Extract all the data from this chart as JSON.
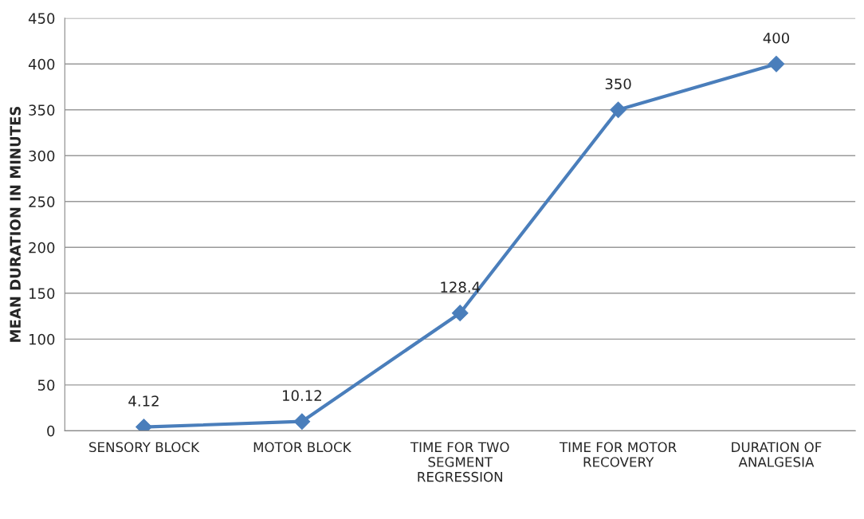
{
  "chart_data": {
    "type": "line",
    "ylabel": "MEAN DURATION IN MINUTES",
    "categories": [
      "SENSORY BLOCK",
      "MOTOR BLOCK",
      "TIME FOR TWO SEGMENT REGRESSION",
      "TIME FOR MOTOR RECOVERY",
      "DURATION OF ANALGESIA"
    ],
    "series": [
      {
        "color": "#4a7ebb",
        "values": [
          4.12,
          10.12,
          128.4,
          350,
          400
        ]
      }
    ],
    "ylim": [
      0,
      450
    ],
    "yticks": [
      0,
      50,
      100,
      150,
      200,
      250,
      300,
      350,
      400,
      450
    ],
    "grid": "y",
    "marker": "diamond",
    "line_style": "solid",
    "data_labels": true
  }
}
